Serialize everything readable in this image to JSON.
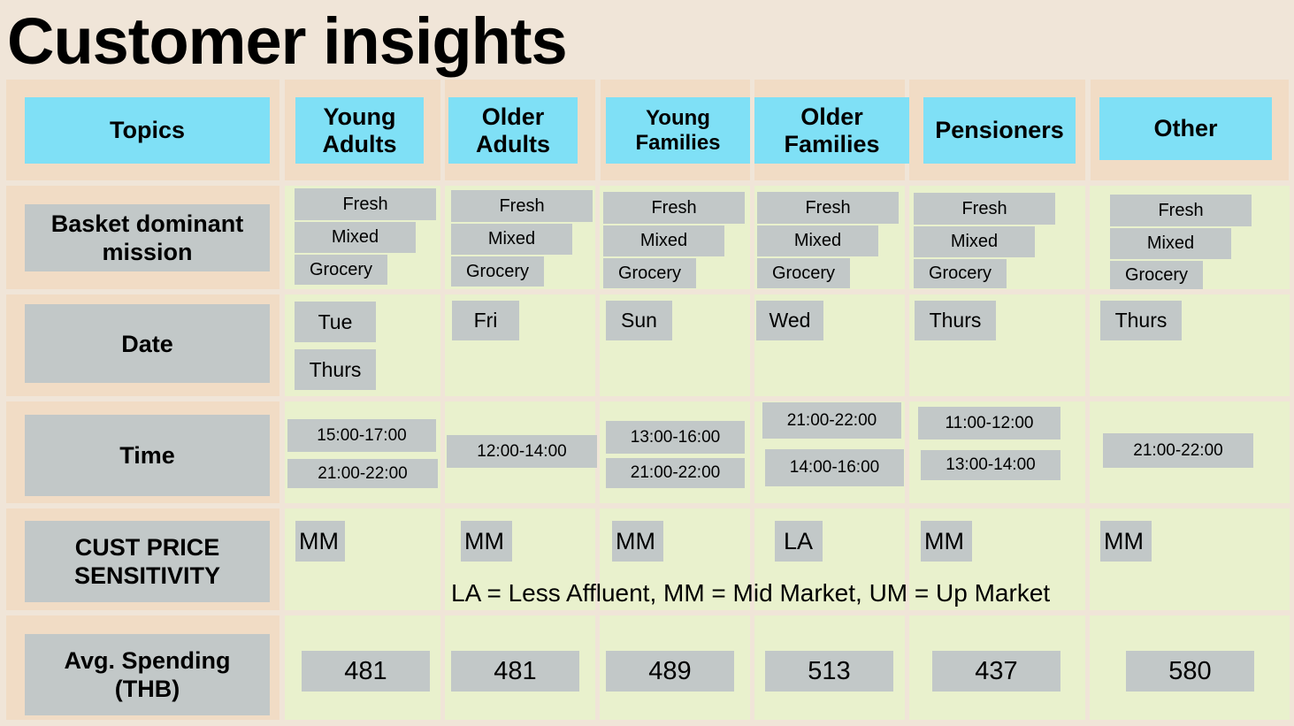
{
  "title": "Customer insights",
  "headers": {
    "topics": "Topics",
    "segments": [
      {
        "line1": "Young",
        "line2": "Adults"
      },
      {
        "line1": "Older",
        "line2": "Adults"
      },
      {
        "line1": "Young",
        "line2": "Families"
      },
      {
        "line1": "Older",
        "line2": "Families"
      },
      {
        "line1": "Pensioners",
        "line2": ""
      },
      {
        "line1": "Other",
        "line2": ""
      }
    ]
  },
  "rows": {
    "basket": {
      "line1": "Basket dominant",
      "line2": "mission"
    },
    "date": "Date",
    "time": "Time",
    "sensitivity": {
      "line1": "CUST PRICE",
      "line2": "SENSITIVITY"
    },
    "spending": {
      "line1": "Avg. Spending",
      "line2": "(THB)"
    }
  },
  "mission_labels": [
    "Fresh",
    "Mixed",
    "Grocery"
  ],
  "dates": [
    [
      "Tue",
      "Thurs"
    ],
    [
      "Fri"
    ],
    [
      "Sun"
    ],
    [
      "Wed"
    ],
    [
      "Thurs"
    ],
    [
      "Thurs"
    ]
  ],
  "times": [
    [
      "15:00-17:00",
      "21:00-22:00"
    ],
    [
      "12:00-14:00"
    ],
    [
      "13:00-16:00",
      "21:00-22:00"
    ],
    [
      "21:00-22:00",
      "14:00-16:00"
    ],
    [
      "11:00-12:00",
      "13:00-14:00"
    ],
    [
      "21:00-22:00"
    ]
  ],
  "sensitivity": [
    "MM",
    "MM",
    "MM",
    "LA",
    "MM",
    "MM"
  ],
  "legend": "LA = Less Affluent, MM = Mid Market, UM = Up Market",
  "spending": [
    "481",
    "481",
    "489",
    "513",
    "437",
    "580"
  ],
  "colors": {
    "background": "#f0e5d8",
    "header_cell": "#f1dcc5",
    "body_cell": "#e9f1cd",
    "header_box": "#7fe0f6",
    "tag": "#c2c8c8"
  }
}
